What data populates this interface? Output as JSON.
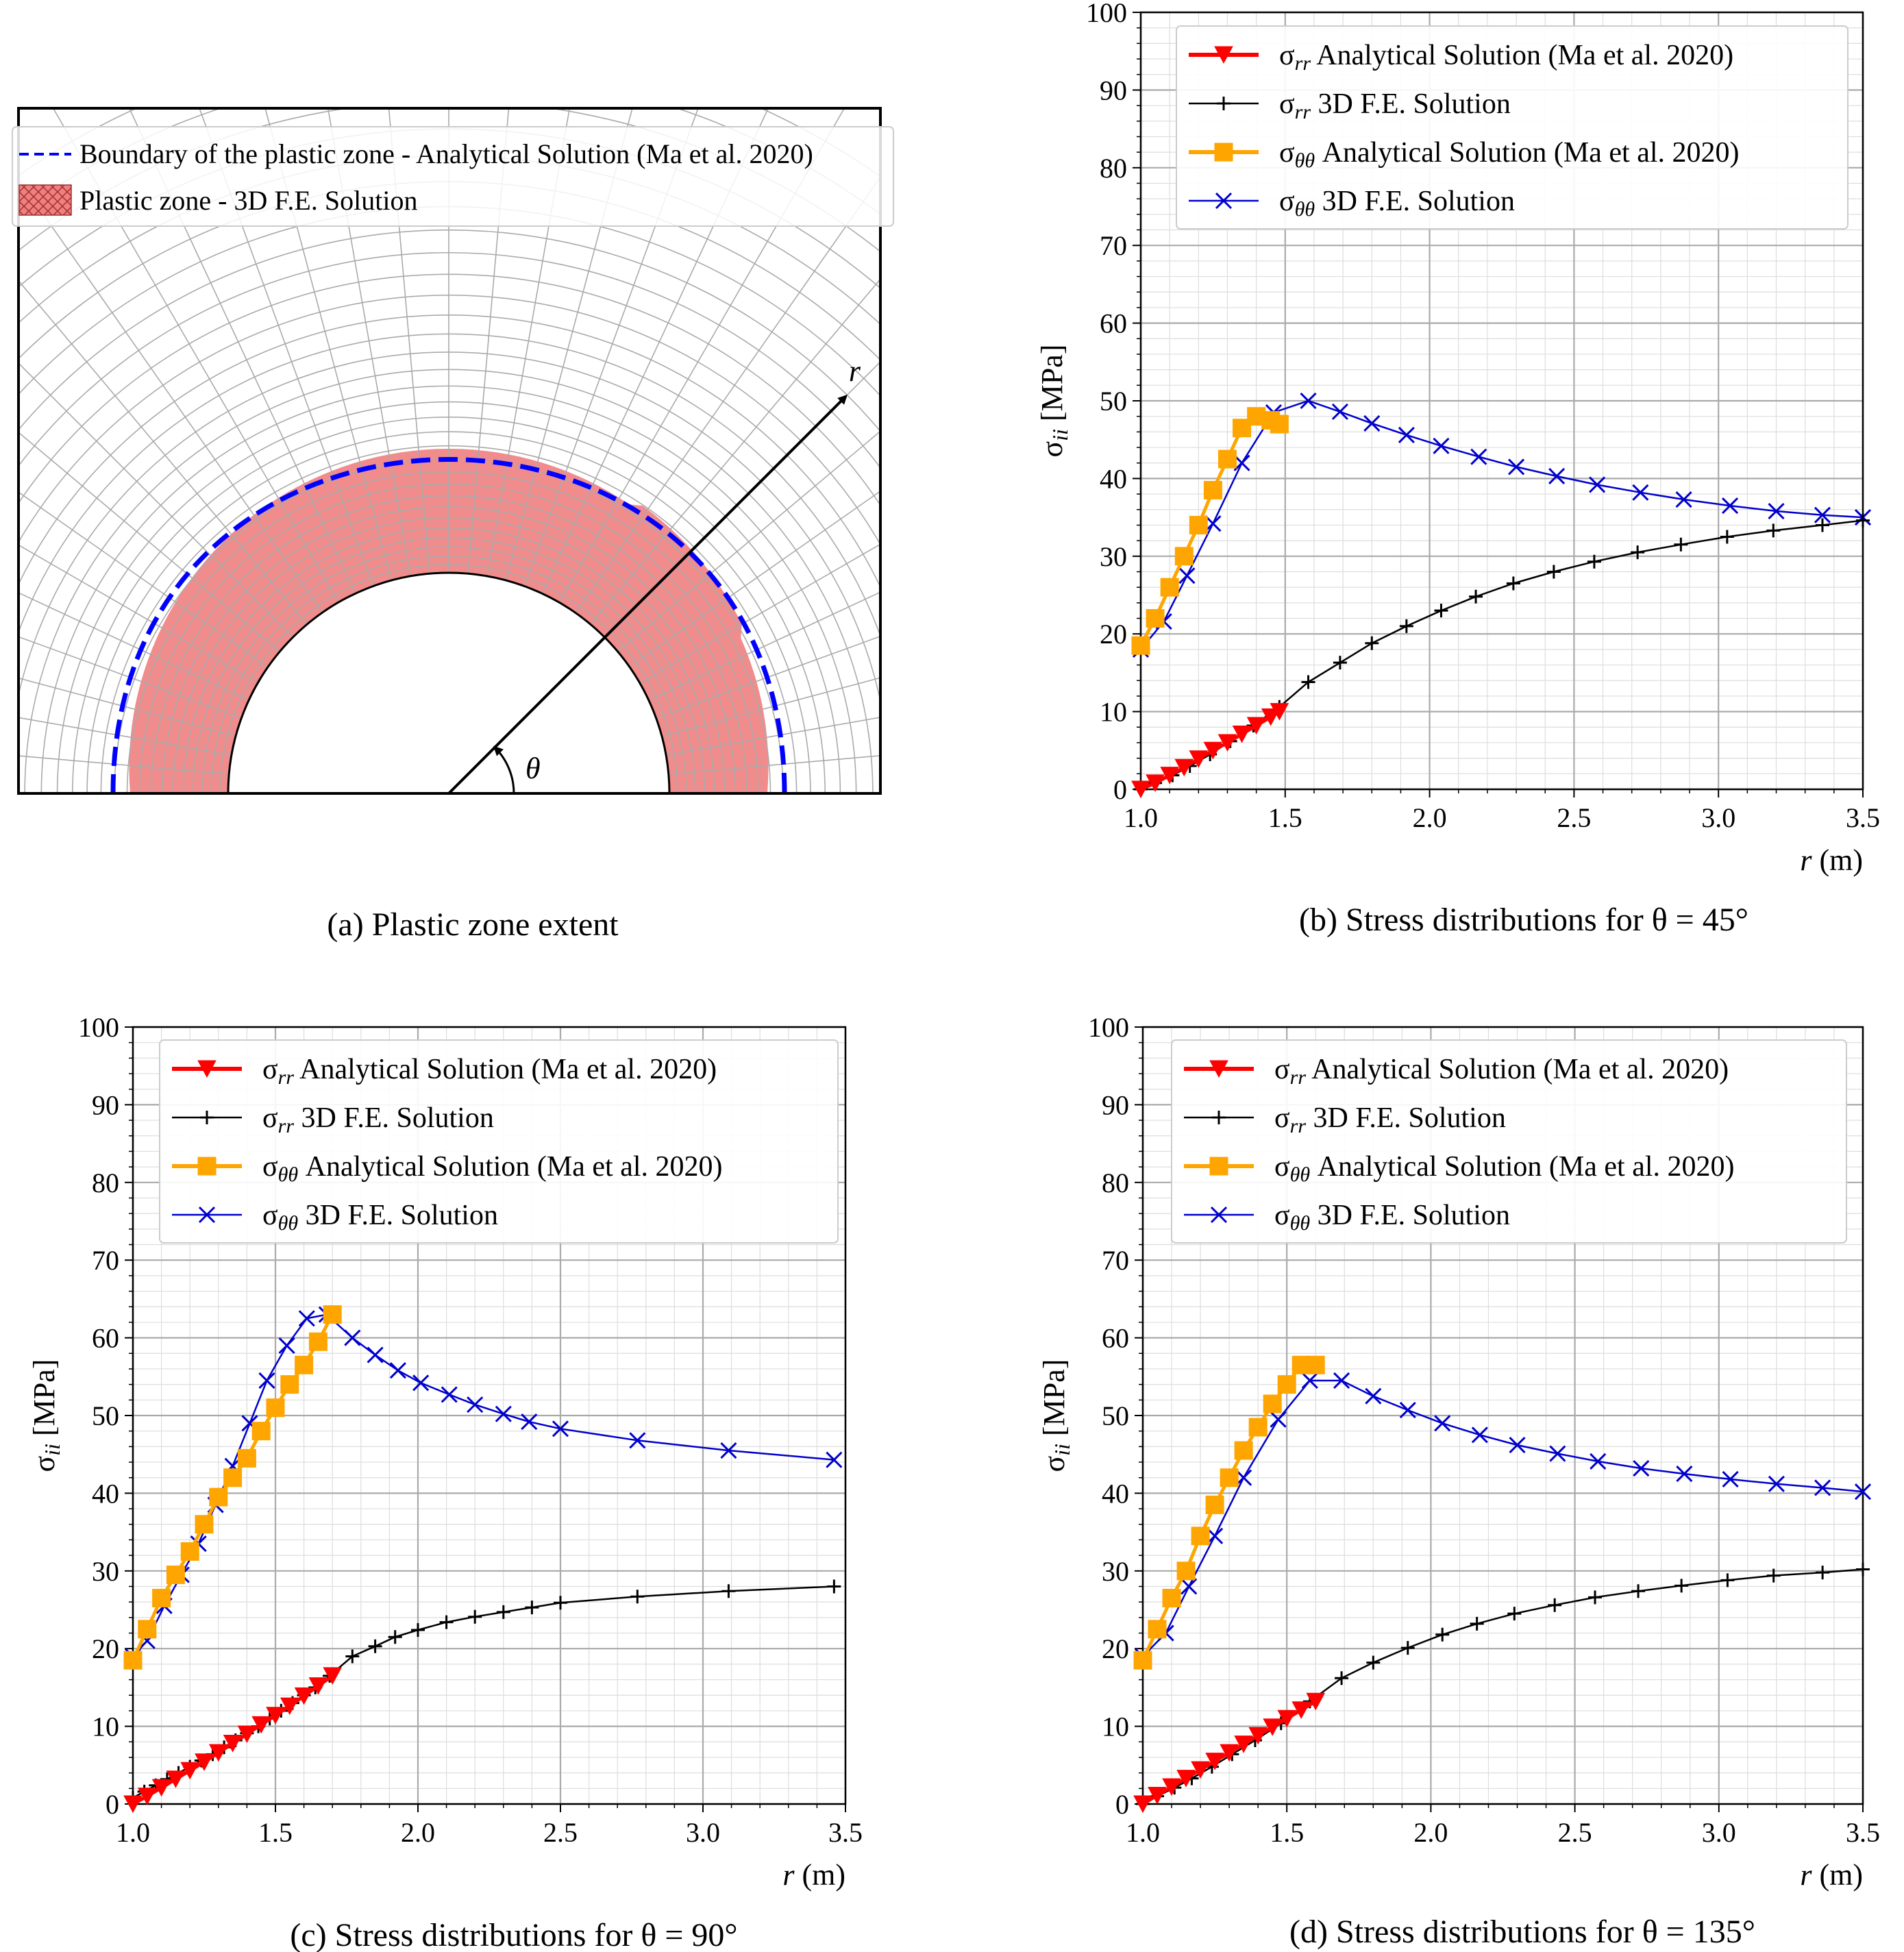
{
  "captions": {
    "a": "(a) Plastic zone extent",
    "b": "(b) Stress distributions for θ = 45°",
    "c": "(c) Stress distributions for θ = 90°",
    "d": "(d) Stress distributions for θ = 135°"
  },
  "legend_a": {
    "boundary": "Boundary of the plastic zone - Analytical Solution (Ma et al. 2020)",
    "zone": "Plastic zone - 3D F.E. Solution"
  },
  "diagram_labels": {
    "r": "r",
    "theta": "θ"
  },
  "series_names": {
    "srr_an": "Analytical Solution (Ma et al. 2020)",
    "srr_fe": "3D F.E. Solution",
    "stt_an": "Analytical Solution (Ma et al. 2020)",
    "stt_fe": "3D F.E. Solution"
  },
  "series_symbols": {
    "srr": "σ",
    "srr_sub": "rr",
    "stt": "σ",
    "stt_sub": "θθ"
  },
  "colors": {
    "srr_an": "#ff0000",
    "srr_fe": "#000000",
    "stt_an": "#ffa500",
    "stt_fe": "#0000cc",
    "zone": "#f08080",
    "boundary": "#0000ff"
  },
  "chart_data": [
    {
      "type": "line",
      "panel": "b",
      "xlabel": "r (m)",
      "ylabel": "σii [MPa]",
      "xlim": [
        1.0,
        3.5
      ],
      "ylim": [
        0,
        100
      ],
      "xticks": [
        "1.0",
        "1.5",
        "2.0",
        "2.5",
        "3.0",
        "3.5"
      ],
      "yticks": [
        "0",
        "10",
        "20",
        "30",
        "40",
        "50",
        "60",
        "70",
        "80",
        "90",
        "100"
      ],
      "grid": true,
      "legend": "top-right",
      "series": [
        {
          "key": "srr_an",
          "x": [
            1.0,
            1.05,
            1.1,
            1.15,
            1.2,
            1.25,
            1.3,
            1.35,
            1.4,
            1.45,
            1.48
          ],
          "y": [
            0.0,
            0.8,
            1.8,
            2.8,
            3.9,
            5.0,
            6.0,
            7.1,
            8.2,
            9.3,
            10.0
          ]
        },
        {
          "key": "srr_fe",
          "x": [
            1.0,
            1.05,
            1.11,
            1.17,
            1.24,
            1.31,
            1.39,
            1.48,
            1.58,
            1.69,
            1.8,
            1.92,
            2.04,
            2.16,
            2.29,
            2.43,
            2.57,
            2.72,
            2.87,
            3.03,
            3.19,
            3.36,
            3.5
          ],
          "y": [
            0.0,
            0.8,
            1.8,
            3.0,
            4.5,
            6.2,
            8.2,
            10.6,
            13.8,
            16.3,
            18.8,
            21.0,
            23.0,
            24.8,
            26.5,
            28.0,
            29.3,
            30.5,
            31.5,
            32.5,
            33.3,
            34.0,
            34.6
          ]
        },
        {
          "key": "stt_an",
          "x": [
            1.0,
            1.05,
            1.1,
            1.15,
            1.2,
            1.25,
            1.3,
            1.35,
            1.4,
            1.45,
            1.48
          ],
          "y": [
            18.5,
            22.0,
            26.0,
            30.0,
            34.0,
            38.5,
            42.5,
            46.5,
            48.0,
            47.5,
            47.0
          ]
        },
        {
          "key": "stt_fe",
          "x": [
            1.0,
            1.08,
            1.16,
            1.25,
            1.35,
            1.46,
            1.58,
            1.69,
            1.8,
            1.92,
            2.04,
            2.17,
            2.3,
            2.44,
            2.58,
            2.73,
            2.88,
            3.04,
            3.2,
            3.36,
            3.5
          ],
          "y": [
            18.0,
            21.6,
            27.5,
            34.2,
            42.0,
            48.5,
            50.0,
            48.6,
            47.1,
            45.6,
            44.2,
            42.8,
            41.5,
            40.3,
            39.2,
            38.2,
            37.3,
            36.5,
            35.8,
            35.3,
            35.0
          ]
        }
      ]
    },
    {
      "type": "line",
      "panel": "c",
      "xlabel": "r (m)",
      "ylabel": "σii [MPa]",
      "xlim": [
        1.0,
        3.5
      ],
      "ylim": [
        0,
        100
      ],
      "xticks": [
        "1.0",
        "1.5",
        "2.0",
        "2.5",
        "3.0",
        "3.5"
      ],
      "yticks": [
        "0",
        "10",
        "20",
        "30",
        "40",
        "50",
        "60",
        "70",
        "80",
        "90",
        "100"
      ],
      "grid": true,
      "legend": "top-right",
      "series": [
        {
          "key": "srr_an",
          "x": [
            1.0,
            1.05,
            1.1,
            1.15,
            1.2,
            1.25,
            1.3,
            1.35,
            1.4,
            1.45,
            1.5,
            1.55,
            1.6,
            1.65,
            1.7
          ],
          "y": [
            0.0,
            1.0,
            2.1,
            3.2,
            4.3,
            5.4,
            6.6,
            7.8,
            9.0,
            10.2,
            11.4,
            12.6,
            13.9,
            15.2,
            16.5
          ]
        },
        {
          "key": "srr_fe",
          "x": [
            1.0,
            1.04,
            1.08,
            1.12,
            1.16,
            1.2,
            1.24,
            1.28,
            1.32,
            1.36,
            1.4,
            1.44,
            1.48,
            1.52,
            1.56,
            1.6,
            1.64,
            1.69,
            1.77,
            1.85,
            1.92,
            2.0,
            2.1,
            2.2,
            2.3,
            2.4,
            2.5,
            2.77,
            3.09,
            3.46
          ],
          "y": [
            0.8,
            1.6,
            2.4,
            3.2,
            4.0,
            4.8,
            5.6,
            6.4,
            7.3,
            8.2,
            9.1,
            10.0,
            11.0,
            12.0,
            13.0,
            14.0,
            15.0,
            16.5,
            19.0,
            20.3,
            21.5,
            22.4,
            23.4,
            24.1,
            24.7,
            25.3,
            25.9,
            26.7,
            27.4,
            28.0
          ]
        },
        {
          "key": "stt_an",
          "x": [
            1.0,
            1.05,
            1.1,
            1.15,
            1.2,
            1.25,
            1.3,
            1.35,
            1.4,
            1.45,
            1.5,
            1.55,
            1.6,
            1.65,
            1.7
          ],
          "y": [
            18.5,
            22.5,
            26.5,
            29.5,
            32.5,
            36.0,
            39.5,
            42.0,
            44.5,
            48.0,
            51.0,
            54.0,
            56.5,
            59.5,
            63.0
          ]
        },
        {
          "key": "stt_fe",
          "x": [
            1.0,
            1.05,
            1.11,
            1.17,
            1.23,
            1.29,
            1.35,
            1.41,
            1.47,
            1.54,
            1.61,
            1.68,
            1.77,
            1.85,
            1.93,
            2.01,
            2.11,
            2.2,
            2.3,
            2.39,
            2.5,
            2.77,
            3.09,
            3.46
          ],
          "y": [
            19.0,
            21.0,
            25.5,
            29.5,
            33.5,
            38.5,
            43.5,
            49.0,
            54.5,
            59.0,
            62.5,
            63.0,
            60.0,
            57.8,
            55.8,
            54.2,
            52.7,
            51.4,
            50.2,
            49.2,
            48.3,
            46.8,
            45.5,
            44.3
          ]
        }
      ]
    },
    {
      "type": "line",
      "panel": "d",
      "xlabel": "r (m)",
      "ylabel": "σii [MPa]",
      "xlim": [
        1.0,
        3.5
      ],
      "ylim": [
        0,
        100
      ],
      "xticks": [
        "1.0",
        "1.5",
        "2.0",
        "2.5",
        "3.0",
        "3.5"
      ],
      "yticks": [
        "0",
        "10",
        "20",
        "30",
        "40",
        "50",
        "60",
        "70",
        "80",
        "90",
        "100"
      ],
      "grid": true,
      "legend": "top-right",
      "series": [
        {
          "key": "srr_an",
          "x": [
            1.0,
            1.05,
            1.1,
            1.15,
            1.2,
            1.25,
            1.3,
            1.35,
            1.4,
            1.45,
            1.5,
            1.55,
            1.6
          ],
          "y": [
            0.0,
            1.1,
            2.2,
            3.3,
            4.4,
            5.5,
            6.6,
            7.7,
            8.8,
            9.9,
            11.0,
            12.1,
            13.2
          ]
        },
        {
          "key": "srr_fe",
          "x": [
            1.0,
            1.05,
            1.11,
            1.17,
            1.24,
            1.31,
            1.39,
            1.48,
            1.58,
            1.69,
            1.8,
            1.92,
            2.04,
            2.16,
            2.29,
            2.43,
            2.57,
            2.72,
            2.87,
            3.03,
            3.19,
            3.36,
            3.5
          ],
          "y": [
            0.0,
            1.0,
            2.1,
            3.3,
            4.8,
            6.4,
            8.2,
            10.4,
            13.2,
            16.2,
            18.2,
            20.1,
            21.8,
            23.2,
            24.5,
            25.6,
            26.6,
            27.4,
            28.1,
            28.8,
            29.4,
            29.8,
            30.2
          ]
        },
        {
          "key": "stt_an",
          "x": [
            1.0,
            1.05,
            1.1,
            1.15,
            1.2,
            1.25,
            1.3,
            1.35,
            1.4,
            1.45,
            1.5,
            1.55,
            1.6
          ],
          "y": [
            18.5,
            22.5,
            26.5,
            30.0,
            34.5,
            38.5,
            42.0,
            45.5,
            48.5,
            51.5,
            54.0,
            56.5,
            56.5
          ]
        },
        {
          "key": "stt_fe",
          "x": [
            1.0,
            1.08,
            1.16,
            1.25,
            1.35,
            1.47,
            1.58,
            1.69,
            1.8,
            1.92,
            2.04,
            2.17,
            2.3,
            2.44,
            2.58,
            2.73,
            2.88,
            3.04,
            3.2,
            3.36,
            3.5
          ],
          "y": [
            19.0,
            22.0,
            28.0,
            34.5,
            42.0,
            49.5,
            54.5,
            54.5,
            52.5,
            50.7,
            49.0,
            47.5,
            46.2,
            45.1,
            44.1,
            43.2,
            42.5,
            41.8,
            41.2,
            40.7,
            40.2
          ]
        }
      ]
    }
  ]
}
